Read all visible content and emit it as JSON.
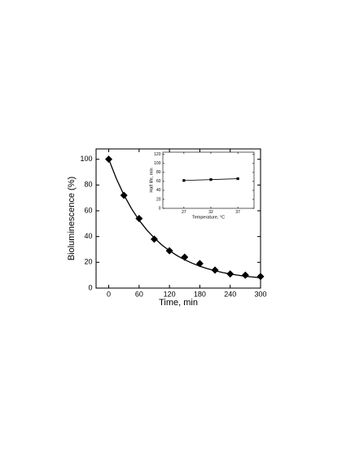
{
  "chart_data": [
    {
      "type": "scatter",
      "x_label": "Time, min",
      "y_label": "Bioluminescence (%)",
      "xlim": [
        -25,
        300
      ],
      "ylim": [
        0,
        108
      ],
      "xticks": [
        0,
        60,
        120,
        180,
        240,
        300
      ],
      "yticks": [
        0,
        20,
        40,
        60,
        80,
        100
      ],
      "series": [
        {
          "color": "#000000",
          "marker": "diamond",
          "x": [
            0,
            30,
            60,
            90,
            120,
            150,
            180,
            210,
            240,
            270,
            300
          ],
          "values": [
            100,
            72,
            54,
            38,
            29,
            24,
            19,
            14,
            11,
            10,
            9
          ]
        },
        {
          "color": "#000000",
          "marker": "none",
          "x": [
            0,
            15,
            30,
            45,
            60,
            75,
            90,
            105,
            120,
            135,
            150,
            165,
            180,
            195,
            210,
            225,
            240,
            255,
            270,
            285,
            300
          ],
          "values": [
            100,
            85,
            72.3,
            61.7,
            52.7,
            45.2,
            38.9,
            33.5,
            29,
            25.2,
            22,
            19.3,
            17,
            15.1,
            13.5,
            12.1,
            11,
            10,
            9.2,
            8.6,
            8
          ]
        }
      ]
    },
    {
      "type": "line",
      "x_label": "Temperature, °C",
      "y_label": "Half life, min",
      "xlim": [
        23.1,
        40
      ],
      "ylim": [
        0,
        125
      ],
      "xticks": [
        27,
        32,
        37
      ],
      "yticks": [
        0,
        20,
        40,
        60,
        80,
        100,
        120
      ],
      "series": [
        {
          "color": "#000000",
          "marker": "square",
          "x": [
            27,
            32,
            37
          ],
          "values": [
            62,
            64,
            66
          ]
        }
      ]
    }
  ]
}
